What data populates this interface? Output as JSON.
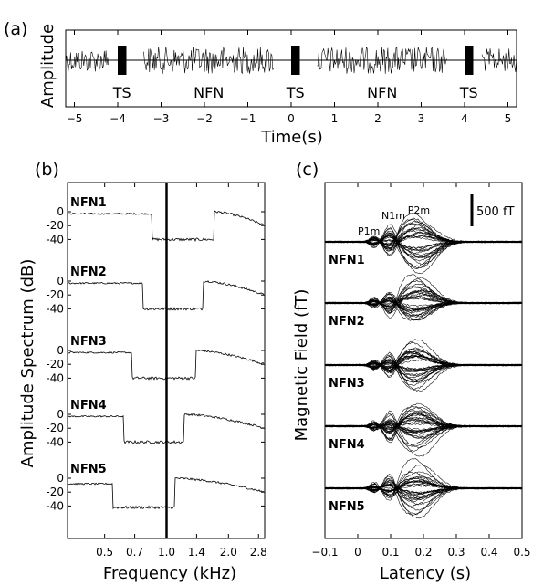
{
  "chart_data": [
    {
      "panel": "(a)",
      "type": "line",
      "xlabel": "Time(s)",
      "ylabel": "Amplitude",
      "xlim": [
        -5.2,
        5.2
      ],
      "xticks": [
        -5,
        -4,
        -3,
        -2,
        -1,
        0,
        1,
        2,
        3,
        4,
        5
      ],
      "segments": [
        {
          "label": "TS",
          "start": -4.0,
          "end": -3.8
        },
        {
          "label": "NFN",
          "start": -3.4,
          "end": -0.4
        },
        {
          "label": "TS",
          "start": 0.0,
          "end": 0.2
        },
        {
          "label": "NFN",
          "start": 0.6,
          "end": 3.6
        },
        {
          "label": "TS",
          "start": 4.0,
          "end": 4.2
        }
      ],
      "noise_edges": {
        "start": -5.2,
        "end": -4.2
      },
      "noise_edges_right": {
        "start": 4.4,
        "end": 5.2
      }
    },
    {
      "panel": "(b)",
      "type": "line",
      "xlabel": "Frequency (kHz)",
      "ylabel": "Amplitude Spectrum (dB)",
      "xscale": "log",
      "xlim": [
        0.33,
        3.0
      ],
      "xticks": [
        "0.5",
        "0.7",
        "1.0",
        "1.4",
        "2.0",
        "2.8"
      ],
      "yticks": [
        "0",
        "-20",
        "-40"
      ],
      "reference_line_khz": 1.0,
      "series": [
        {
          "name": "NFN1",
          "notch_khz": [
            0.85,
            1.7
          ],
          "level_db": 0,
          "notch_db": -40,
          "high_start_db": 0,
          "high_end_db": -20
        },
        {
          "name": "NFN2",
          "notch_khz": [
            0.77,
            1.5
          ],
          "level_db": 0,
          "notch_db": -40,
          "high_start_db": 0,
          "high_end_db": -20
        },
        {
          "name": "NFN3",
          "notch_khz": [
            0.68,
            1.38
          ],
          "level_db": 0,
          "notch_db": -40,
          "high_start_db": 0,
          "high_end_db": -20
        },
        {
          "name": "NFN4",
          "notch_khz": [
            0.62,
            1.22
          ],
          "level_db": 0,
          "notch_db": -40,
          "high_start_db": 0,
          "high_end_db": -20
        },
        {
          "name": "NFN5",
          "notch_khz": [
            0.55,
            1.1
          ],
          "level_db": -5,
          "notch_db": -42,
          "high_start_db": 0,
          "high_end_db": -20
        }
      ]
    },
    {
      "panel": "(c)",
      "type": "line",
      "xlabel": "Latency (s)",
      "ylabel": "Magnetic Field (fT)",
      "xlim": [
        -0.1,
        0.5
      ],
      "xticks": [
        "−0.1",
        "0",
        "0.1",
        "0.2",
        "0.3",
        "0.4",
        "0.5"
      ],
      "scale_bar": "500 fT",
      "peaks": [
        {
          "label": "P1m",
          "latency_s": 0.05
        },
        {
          "label": "N1m",
          "latency_s": 0.1
        },
        {
          "label": "P2m",
          "latency_s": 0.18
        }
      ],
      "series": [
        {
          "name": "NFN1"
        },
        {
          "name": "NFN2"
        },
        {
          "name": "NFN3"
        },
        {
          "name": "NFN4"
        },
        {
          "name": "NFN5"
        }
      ],
      "channels_per_condition": 34
    }
  ]
}
